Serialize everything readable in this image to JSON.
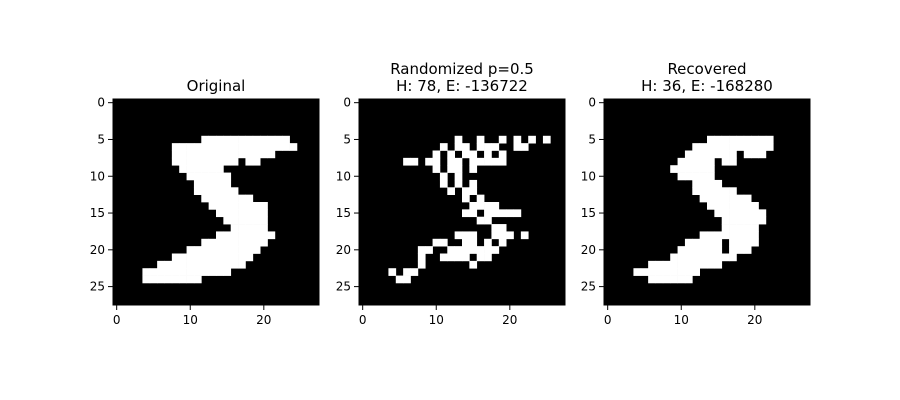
{
  "chart_data": {
    "type": "heatmap",
    "colormap": {
      "0": "#000000",
      "1": "#ffffff"
    },
    "grid": false,
    "panels": [
      {
        "title_lines": [
          "Original"
        ],
        "x_ticks": [
          "0",
          "10",
          "20"
        ],
        "y_ticks": [
          "0",
          "5",
          "10",
          "15",
          "20",
          "25"
        ],
        "xlim": [
          -0.5,
          27.5
        ],
        "ylim": [
          27.5,
          -0.5
        ],
        "rows": [
          "............................",
          "............................",
          "............................",
          "............................",
          "............................",
          "............oooooooooooo....",
          "........ooooooooooooooooo...",
          "........oooooooooooooo......",
          "........ooooooooo.oo........",
          ".........oooooo.............",
          "..........oooooo............",
          "...........ooooo............",
          "...........oooooo...........",
          "............ooooooo.........",
          ".............oooooooo.......",
          "..............ooooooo.......",
          "...............oooooo.......",
          "................ooooo.......",
          "..............oooooooo......",
          "............ooooooooo.......",
          "..........oooooooooo........",
          "........ooooooooooo.........",
          "......oooooooooooo..........",
          "....oooooooooooo............",
          "....oooooooo................",
          "............................",
          "............................",
          "............................"
        ]
      },
      {
        "title_lines": [
          "Randomized p=0.5",
          "H: 78, E: -136722"
        ],
        "x_ticks": [
          "0",
          "10",
          "20"
        ],
        "y_ticks": [
          "0",
          "5",
          "10",
          "15",
          "20",
          "25"
        ],
        "xlim": [
          -0.5,
          27.5
        ],
        "ylim": [
          27.5,
          -0.5
        ],
        "rows": [
          "............................",
          "............................",
          "............................",
          "............................",
          "............................",
          ".............o..o..o.o.o.o..",
          "...........o.oo.ooo..oo.....",
          "..........o.o.oo.o.o........",
          "......oo.oo.oo.ooooo........",
          "..........o.oo.o............",
          "...........o.o..............",
          "...........o.o.o............",
          "............o.oo............",
          "..............o.o...........",
          "...............oooo.........",
          "..............oo.ooooo......",
          "................oo..........",
          "..................oo........",
          ".............ooo..ooo.o.....",
          "..........oo..oo.o.o........",
          "........oo..ooooooo.........",
          "........o..oooo.oo..........",
          "........o......o............",
          "....o.oo....................",
          ".....oo.....................",
          "............................",
          "............................",
          "............................"
        ]
      },
      {
        "title_lines": [
          "Recovered",
          "H: 36, E: -168280"
        ],
        "x_ticks": [
          "0",
          "10",
          "20"
        ],
        "y_ticks": [
          "0",
          "5",
          "10",
          "15",
          "20",
          "25"
        ],
        "xlim": [
          -0.5,
          27.5
        ],
        "ylim": [
          27.5,
          -0.5
        ],
        "rows": [
          "............................",
          "............................",
          "............................",
          "............................",
          "............................",
          "..............ooooooooo.....",
          "............ooooooooooo.....",
          "...........ooooooo.ooo......",
          "..........ooooo.oo..........",
          ".........oooooo.............",
          "..........ooooo.............",
          "............oooo............",
          "............oooooo..........",
          ".............ooooooo........",
          "..............ooooooo.......",
          "...............ooooooo......",
          "................oooooo......",
          "................ooooo.......",
          ".............oooooooo.......",
          "...........ooooo.oooo.......",
          "..........oooooo.ooo........",
          ".........ooooooooo..........",
          "......oooooooooo............",
          "....ooooooooo...............",
          "......oooooo................",
          "............................",
          "............................",
          "............................"
        ]
      }
    ]
  }
}
